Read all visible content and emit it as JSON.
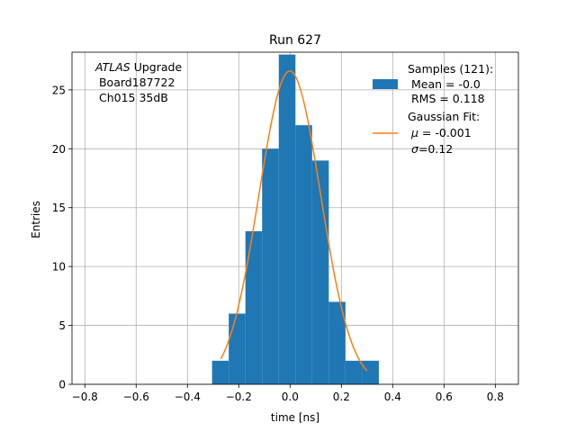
{
  "chart_data": {
    "type": "histogram",
    "title": "Run 627",
    "xlabel": "time [ns]",
    "ylabel": "Entries",
    "xlim": [
      -0.85,
      0.89
    ],
    "ylim": [
      0,
      28.2
    ],
    "xticks": [
      -0.8,
      -0.6,
      -0.4,
      -0.2,
      0.0,
      0.2,
      0.4,
      0.6,
      0.8
    ],
    "xtick_labels": [
      "−0.8",
      "−0.6",
      "−0.4",
      "−0.2",
      "0.0",
      "0.2",
      "0.4",
      "0.6",
      "0.8"
    ],
    "yticks": [
      0,
      5,
      10,
      15,
      20,
      25
    ],
    "ytick_labels": [
      "0",
      "5",
      "10",
      "15",
      "20",
      "25"
    ],
    "grid": true,
    "legend_position": "top-right",
    "histogram": {
      "name": "Samples (121):",
      "color": "#1f77b4",
      "bin_edges": [
        -0.304,
        -0.239,
        -0.174,
        -0.109,
        -0.044,
        0.021,
        0.086,
        0.151,
        0.216,
        0.281,
        0.346
      ],
      "counts": [
        2,
        6,
        13,
        20,
        28,
        22,
        19,
        7,
        2,
        2
      ]
    },
    "fit": {
      "name": "Gaussian Fit:",
      "color": "#ff7f0e",
      "mu": -0.001,
      "sigma": 0.12,
      "amplitude": 26.6,
      "x_range": [
        -0.27,
        0.3
      ]
    },
    "legend": {
      "samples_label": "Samples (121):",
      "samples_line2": " Mean = -0.0",
      "samples_line3": " RMS = 0.118",
      "fit_label": "Gaussian Fit:",
      "fit_mu_symbol": "μ",
      "fit_mu_value": " = -0.001",
      "fit_sigma_symbol": "σ",
      "fit_sigma_value": "=0.12"
    },
    "annotation": {
      "line1_italic": "ATLAS",
      "line1_rest": " Upgrade",
      "line2": " Board187722",
      "line3": " Ch015 35dB"
    }
  }
}
